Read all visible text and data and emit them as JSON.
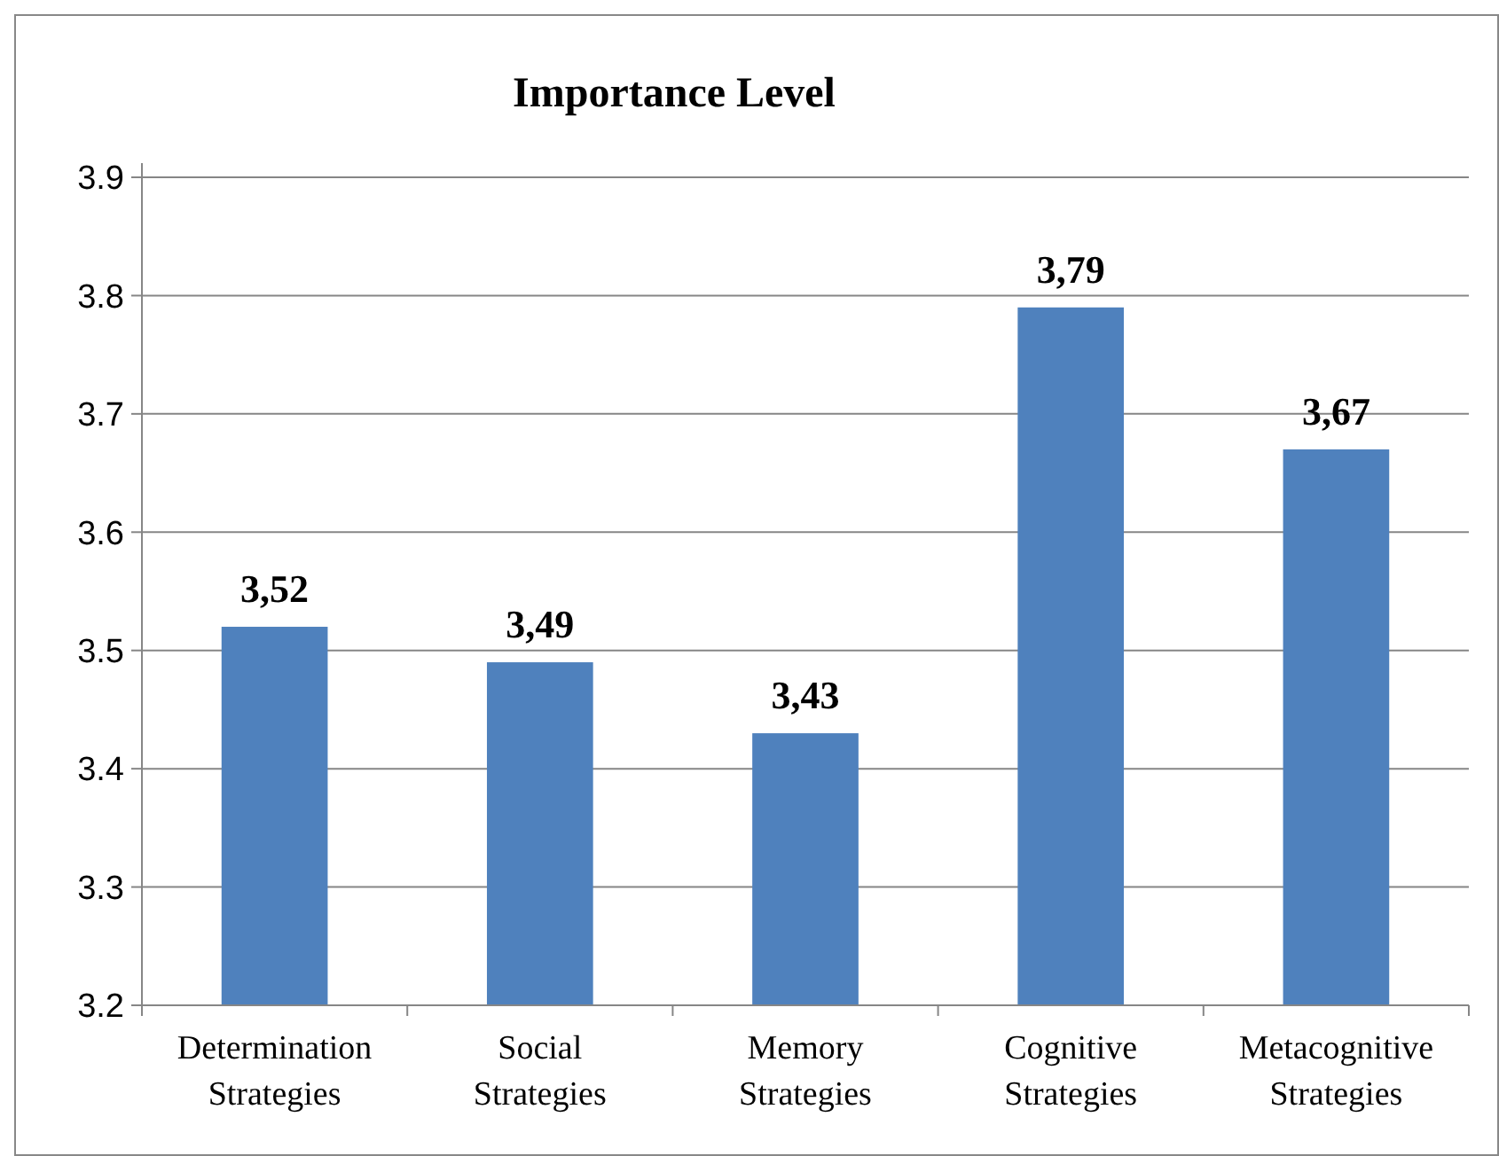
{
  "chart_data": {
    "type": "bar",
    "title": "Importance Level",
    "categories": [
      "Determination\nStrategies",
      "Social\nStrategies",
      "Memory\nStrategies",
      "Cognitive\nStrategies",
      "Metacognitive\nStrategies"
    ],
    "values": [
      3.52,
      3.49,
      3.43,
      3.79,
      3.67
    ],
    "color": "#4f81bd",
    "value_labels": [
      "3,52",
      "3,49",
      "3,43",
      "3,79",
      "3,67"
    ],
    "ylim": [
      3.2,
      3.9
    ],
    "yticks": [
      {
        "value": 3.2,
        "label": "3.2"
      },
      {
        "value": 3.3,
        "label": "3.3"
      },
      {
        "value": 3.4,
        "label": "3.4"
      },
      {
        "value": 3.5,
        "label": "3.5"
      },
      {
        "value": 3.6,
        "label": "3.6"
      },
      {
        "value": 3.7,
        "label": "3.7"
      },
      {
        "value": 3.8,
        "label": "3.8"
      },
      {
        "value": 3.9,
        "label": "3.9"
      }
    ],
    "grid": "y"
  }
}
